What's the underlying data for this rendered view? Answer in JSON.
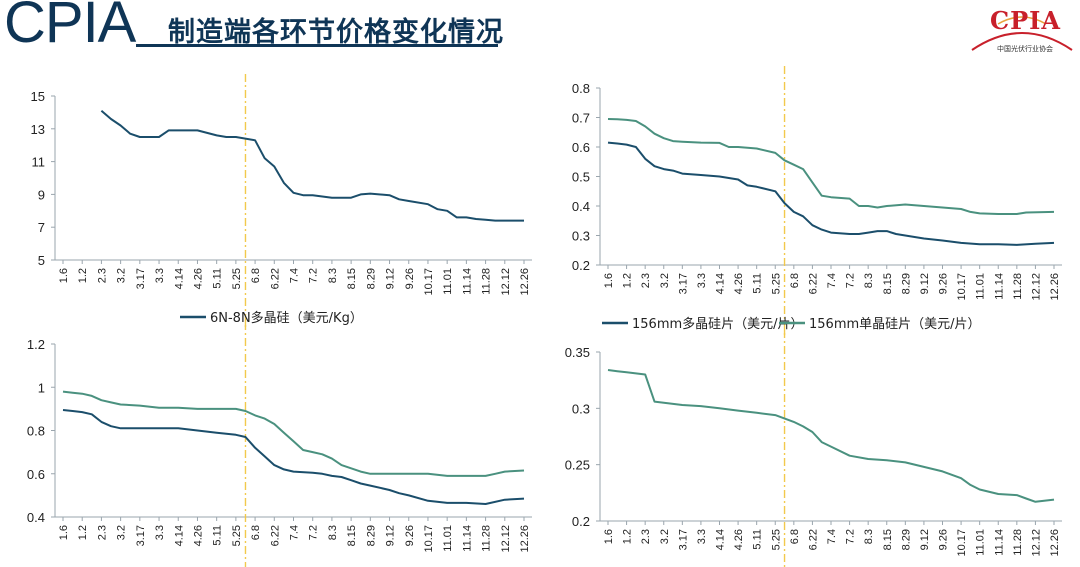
{
  "header": {
    "brand": "CPIA",
    "title": "制造端各环节价格变化情况"
  },
  "logo": {
    "text": "CPIA",
    "subtitle": "中国光伏行业协会"
  },
  "colors": {
    "primary": "#0f3556",
    "series_dark": "#1b4e6b",
    "series_teal": "#4a917f",
    "marker_line": "#f2c94c",
    "axis": "#9aa5ad"
  },
  "chart_data": [
    {
      "id": "polysilicon",
      "type": "line",
      "x": [
        "1.6",
        "1.2",
        "2.3",
        "3.2",
        "3.17",
        "3.3",
        "4.14",
        "4.26",
        "5.11",
        "5.25",
        "6.8",
        "6.22",
        "7.4",
        "7.2",
        "8.3",
        "8.15",
        "8.29",
        "9.12",
        "9.26",
        "10.17",
        "11.01",
        "11.14",
        "11.28",
        "12.12",
        "12.26"
      ],
      "ylim": [
        5,
        15
      ],
      "yticks": [
        5,
        7,
        9,
        11,
        13,
        15
      ],
      "legend_position": "bottom",
      "series": [
        {
          "name": "6N-8N多晶硅（美元/Kg）",
          "color": "#1b4e6b",
          "points": [
            [
              2,
              14.1
            ],
            [
              2.5,
              13.6
            ],
            [
              3,
              13.2
            ],
            [
              3.5,
              12.7
            ],
            [
              4,
              12.5
            ],
            [
              5,
              12.5
            ],
            [
              5.5,
              12.9
            ],
            [
              7,
              12.9
            ],
            [
              8,
              12.6
            ],
            [
              8.5,
              12.5
            ],
            [
              9,
              12.5
            ],
            [
              10,
              12.3
            ],
            [
              10.5,
              11.2
            ],
            [
              11,
              10.7
            ],
            [
              11.5,
              9.7
            ],
            [
              12,
              9.1
            ],
            [
              12.5,
              8.95
            ],
            [
              13,
              8.95
            ],
            [
              14,
              8.8
            ],
            [
              14.5,
              8.8
            ],
            [
              15,
              8.8
            ],
            [
              15.5,
              9.0
            ],
            [
              16,
              9.05
            ],
            [
              17,
              8.95
            ],
            [
              17.5,
              8.7
            ],
            [
              18,
              8.6
            ],
            [
              19,
              8.4
            ],
            [
              19.5,
              8.1
            ],
            [
              20,
              8.0
            ],
            [
              20.5,
              7.6
            ],
            [
              21,
              7.6
            ],
            [
              21.5,
              7.5
            ],
            [
              22,
              7.45
            ],
            [
              22.5,
              7.4
            ],
            [
              24,
              7.4
            ]
          ]
        }
      ]
    },
    {
      "id": "wafer",
      "type": "line",
      "x": [
        "1.6",
        "1.2",
        "2.3",
        "3.2",
        "3.17",
        "3.3",
        "4.14",
        "4.26",
        "5.11",
        "5.25",
        "6.8",
        "6.22",
        "7.4",
        "7.2",
        "8.3",
        "8.15",
        "8.29",
        "9.12",
        "9.26",
        "10.17",
        "11.01",
        "11.14",
        "11.28",
        "12.12",
        "12.26"
      ],
      "ylim": [
        0.2,
        0.8
      ],
      "yticks": [
        0.2,
        0.3,
        0.4,
        0.5,
        0.6,
        0.7,
        0.8
      ],
      "legend_position": "bottom",
      "series": [
        {
          "name": "156mm多晶硅片（美元/片）",
          "color": "#1b4e6b",
          "points": [
            [
              0,
              0.615
            ],
            [
              0.5,
              0.612
            ],
            [
              1,
              0.608
            ],
            [
              1.5,
              0.6
            ],
            [
              2,
              0.56
            ],
            [
              2.5,
              0.535
            ],
            [
              3,
              0.525
            ],
            [
              3.5,
              0.52
            ],
            [
              4,
              0.51
            ],
            [
              5,
              0.505
            ],
            [
              6,
              0.5
            ],
            [
              7,
              0.49
            ],
            [
              7.5,
              0.47
            ],
            [
              8,
              0.465
            ],
            [
              9,
              0.45
            ],
            [
              9.5,
              0.41
            ],
            [
              10,
              0.38
            ],
            [
              10.5,
              0.365
            ],
            [
              11,
              0.335
            ],
            [
              11.5,
              0.32
            ],
            [
              12,
              0.31
            ],
            [
              13,
              0.305
            ],
            [
              13.5,
              0.305
            ],
            [
              14,
              0.31
            ],
            [
              14.5,
              0.315
            ],
            [
              15,
              0.315
            ],
            [
              15.5,
              0.305
            ],
            [
              16,
              0.3
            ],
            [
              17,
              0.29
            ],
            [
              18,
              0.283
            ],
            [
              19,
              0.275
            ],
            [
              20,
              0.27
            ],
            [
              21,
              0.27
            ],
            [
              22,
              0.268
            ],
            [
              23,
              0.272
            ],
            [
              24,
              0.275
            ]
          ]
        },
        {
          "name": "156mm单晶硅片（美元/片）",
          "color": "#4a917f",
          "points": [
            [
              0,
              0.695
            ],
            [
              0.5,
              0.694
            ],
            [
              1,
              0.692
            ],
            [
              1.5,
              0.688
            ],
            [
              2,
              0.67
            ],
            [
              2.5,
              0.645
            ],
            [
              3,
              0.63
            ],
            [
              3.5,
              0.62
            ],
            [
              4,
              0.618
            ],
            [
              5,
              0.615
            ],
            [
              6,
              0.614
            ],
            [
              6.5,
              0.6
            ],
            [
              7,
              0.6
            ],
            [
              8,
              0.595
            ],
            [
              9,
              0.58
            ],
            [
              9.5,
              0.555
            ],
            [
              10,
              0.54
            ],
            [
              10.5,
              0.525
            ],
            [
              11,
              0.48
            ],
            [
              11.5,
              0.435
            ],
            [
              12,
              0.43
            ],
            [
              13,
              0.425
            ],
            [
              13.5,
              0.4
            ],
            [
              14,
              0.4
            ],
            [
              14.5,
              0.395
            ],
            [
              15,
              0.4
            ],
            [
              16,
              0.405
            ],
            [
              17,
              0.4
            ],
            [
              18,
              0.395
            ],
            [
              19,
              0.39
            ],
            [
              19.5,
              0.38
            ],
            [
              20,
              0.375
            ],
            [
              21,
              0.373
            ],
            [
              22,
              0.373
            ],
            [
              22.5,
              0.378
            ],
            [
              24,
              0.38
            ]
          ]
        }
      ]
    },
    {
      "id": "cell",
      "type": "line",
      "x": [
        "1.6",
        "1.2",
        "2.3",
        "3.2",
        "3.17",
        "3.3",
        "4.14",
        "4.26",
        "5.11",
        "5.25",
        "6.8",
        "6.22",
        "7.4",
        "7.2",
        "8.3",
        "8.15",
        "8.29",
        "9.12",
        "9.26",
        "10.17",
        "11.01",
        "11.14",
        "11.28",
        "12.12",
        "12.26"
      ],
      "ylim": [
        0.4,
        1.2
      ],
      "yticks": [
        0.4,
        0.6,
        0.8,
        1,
        1.2
      ],
      "series": [
        {
          "color": "#1b4e6b",
          "points": [
            [
              0,
              0.895
            ],
            [
              0.5,
              0.89
            ],
            [
              1,
              0.885
            ],
            [
              1.5,
              0.875
            ],
            [
              2,
              0.84
            ],
            [
              2.5,
              0.82
            ],
            [
              3,
              0.81
            ],
            [
              4,
              0.81
            ],
            [
              5,
              0.81
            ],
            [
              6,
              0.81
            ],
            [
              7,
              0.8
            ],
            [
              8,
              0.79
            ],
            [
              9,
              0.78
            ],
            [
              9.5,
              0.77
            ],
            [
              10,
              0.72
            ],
            [
              10.5,
              0.68
            ],
            [
              11,
              0.64
            ],
            [
              11.5,
              0.62
            ],
            [
              12,
              0.61
            ],
            [
              13,
              0.605
            ],
            [
              13.5,
              0.6
            ],
            [
              14,
              0.59
            ],
            [
              14.5,
              0.585
            ],
            [
              15,
              0.57
            ],
            [
              15.5,
              0.555
            ],
            [
              16,
              0.545
            ],
            [
              17,
              0.525
            ],
            [
              17.5,
              0.51
            ],
            [
              18,
              0.5
            ],
            [
              19,
              0.475
            ],
            [
              20,
              0.465
            ],
            [
              21,
              0.465
            ],
            [
              22,
              0.46
            ],
            [
              23,
              0.48
            ],
            [
              24,
              0.485
            ]
          ]
        },
        {
          "color": "#4a917f",
          "points": [
            [
              0,
              0.98
            ],
            [
              0.5,
              0.975
            ],
            [
              1,
              0.97
            ],
            [
              1.5,
              0.96
            ],
            [
              2,
              0.94
            ],
            [
              2.5,
              0.93
            ],
            [
              3,
              0.92
            ],
            [
              4,
              0.915
            ],
            [
              5,
              0.905
            ],
            [
              6,
              0.905
            ],
            [
              7,
              0.9
            ],
            [
              8,
              0.9
            ],
            [
              9,
              0.9
            ],
            [
              9.5,
              0.89
            ],
            [
              10,
              0.87
            ],
            [
              10.5,
              0.855
            ],
            [
              11,
              0.83
            ],
            [
              11.5,
              0.79
            ],
            [
              12,
              0.75
            ],
            [
              12.5,
              0.71
            ],
            [
              13,
              0.7
            ],
            [
              13.5,
              0.69
            ],
            [
              14,
              0.67
            ],
            [
              14.5,
              0.64
            ],
            [
              15,
              0.625
            ],
            [
              15.5,
              0.61
            ],
            [
              16,
              0.6
            ],
            [
              17,
              0.6
            ],
            [
              18,
              0.6
            ],
            [
              19,
              0.6
            ],
            [
              20,
              0.59
            ],
            [
              21,
              0.59
            ],
            [
              22,
              0.59
            ],
            [
              22.5,
              0.6
            ],
            [
              23,
              0.61
            ],
            [
              24,
              0.615
            ]
          ]
        }
      ]
    },
    {
      "id": "module",
      "type": "line",
      "x": [
        "1.6",
        "1.2",
        "2.3",
        "3.2",
        "3.17",
        "3.3",
        "4.14",
        "4.26",
        "5.11",
        "5.25",
        "6.8",
        "6.22",
        "7.4",
        "7.2",
        "8.3",
        "8.15",
        "8.29",
        "9.12",
        "9.26",
        "10.17",
        "11.01",
        "11.14",
        "11.28",
        "12.12",
        "12.26"
      ],
      "ylim": [
        0.2,
        0.35
      ],
      "yticks": [
        0.2,
        0.25,
        0.3,
        0.35
      ],
      "series": [
        {
          "color": "#4a917f",
          "points": [
            [
              0,
              0.334
            ],
            [
              0.5,
              0.333
            ],
            [
              1,
              0.332
            ],
            [
              1.5,
              0.331
            ],
            [
              2,
              0.33
            ],
            [
              2.5,
              0.306
            ],
            [
              3,
              0.305
            ],
            [
              4,
              0.303
            ],
            [
              5,
              0.302
            ],
            [
              6,
              0.3
            ],
            [
              7,
              0.298
            ],
            [
              8,
              0.296
            ],
            [
              9,
              0.294
            ],
            [
              10,
              0.288
            ],
            [
              10.5,
              0.284
            ],
            [
              11,
              0.279
            ],
            [
              11.5,
              0.27
            ],
            [
              12,
              0.266
            ],
            [
              13,
              0.258
            ],
            [
              14,
              0.255
            ],
            [
              15,
              0.254
            ],
            [
              16,
              0.252
            ],
            [
              17,
              0.248
            ],
            [
              18,
              0.244
            ],
            [
              19,
              0.238
            ],
            [
              19.5,
              0.232
            ],
            [
              20,
              0.228
            ],
            [
              21,
              0.224
            ],
            [
              22,
              0.223
            ],
            [
              22.5,
              0.22
            ],
            [
              23,
              0.217
            ],
            [
              24,
              0.219
            ]
          ]
        }
      ]
    }
  ]
}
